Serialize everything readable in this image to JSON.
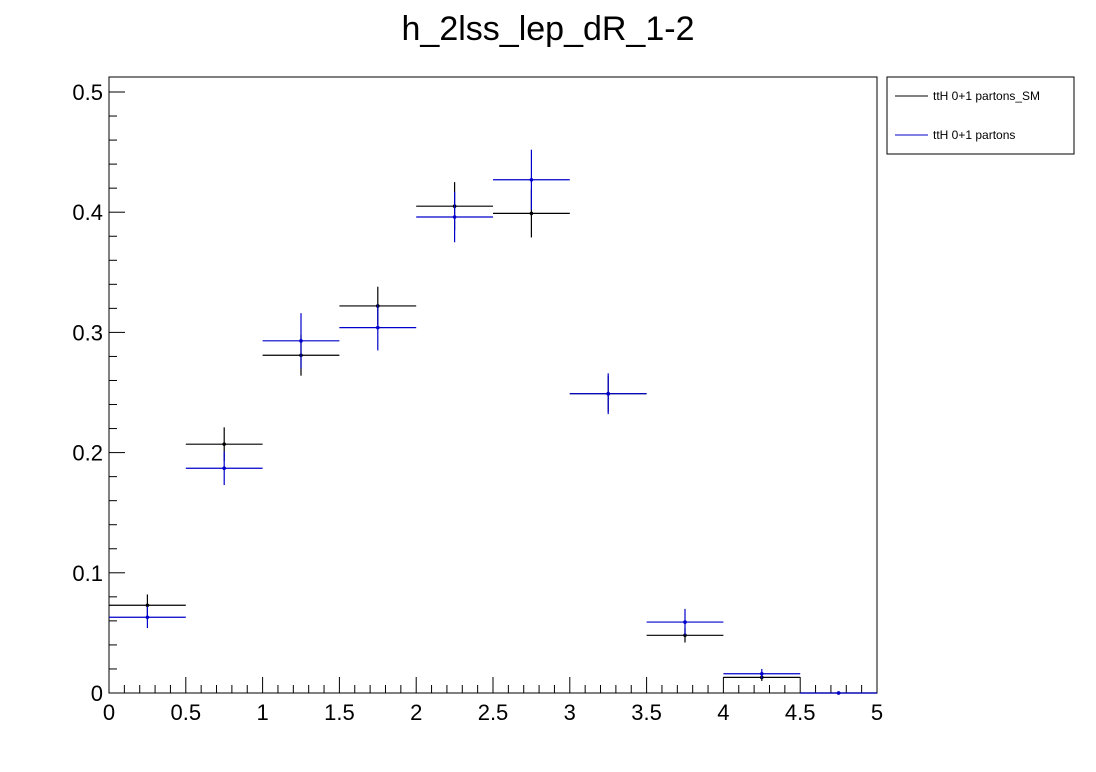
{
  "chart_data": {
    "type": "scatter",
    "title": "h_2lss_lep_dR_1-2",
    "xlabel": "",
    "ylabel": "",
    "xlim": [
      0,
      5
    ],
    "ylim": [
      0,
      0.5
    ],
    "x_ticks": [
      "0",
      "0.5",
      "1",
      "1.5",
      "2",
      "2.5",
      "3",
      "3.5",
      "4",
      "4.5",
      "5"
    ],
    "y_ticks": [
      "0",
      "0.1",
      "0.2",
      "0.3",
      "0.4",
      "0.5"
    ],
    "grid": false,
    "legend_position": "top-right outside",
    "bin_edges": [
      0,
      0.5,
      1,
      1.5,
      2,
      2.5,
      3,
      3.5,
      4,
      4.5,
      5
    ],
    "series": [
      {
        "name": "ttH 0+1 partons_SM",
        "color": "#000000",
        "values": [
          0.073,
          0.207,
          0.281,
          0.322,
          0.405,
          0.399,
          0.249,
          0.048,
          0.013,
          0.0
        ],
        "errors": [
          0.009,
          0.014,
          0.017,
          0.016,
          0.02,
          0.02,
          0.015,
          0.006,
          0.003,
          0.0
        ]
      },
      {
        "name": "ttH 0+1 partons",
        "color": "#0000cc",
        "values": [
          0.063,
          0.187,
          0.293,
          0.304,
          0.396,
          0.427,
          0.249,
          0.059,
          0.016,
          0.0
        ],
        "errors": [
          0.009,
          0.014,
          0.023,
          0.019,
          0.021,
          0.025,
          0.017,
          0.011,
          0.004,
          0.0
        ]
      }
    ]
  }
}
